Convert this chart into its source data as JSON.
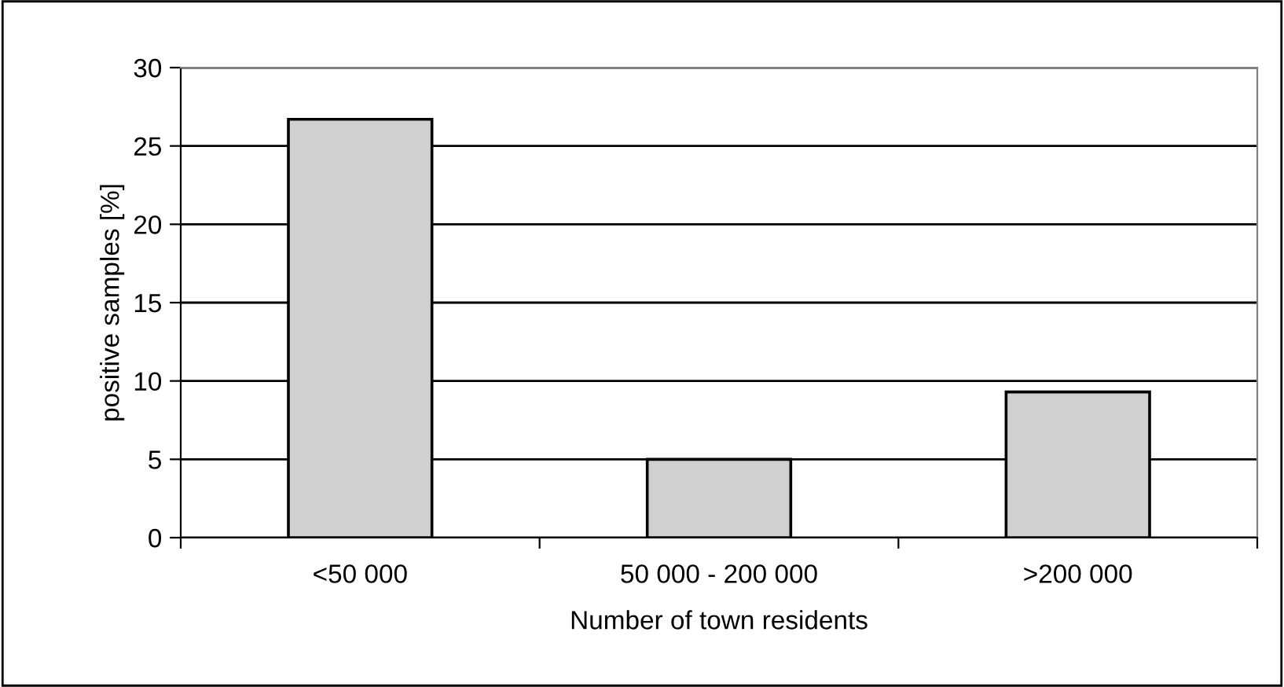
{
  "chart_data": {
    "type": "bar",
    "xlabel": "Number of town residents",
    "ylabel": "positive samples [%]",
    "categories": [
      "<50 000",
      "50 000 - 200 000",
      ">200 000"
    ],
    "values": [
      26.7,
      5.0,
      9.3
    ],
    "color": "#d0d0d0",
    "ylim": [
      0,
      30
    ],
    "yticks": [
      0,
      5,
      10,
      15,
      20,
      25,
      30
    ],
    "grid": "y"
  }
}
